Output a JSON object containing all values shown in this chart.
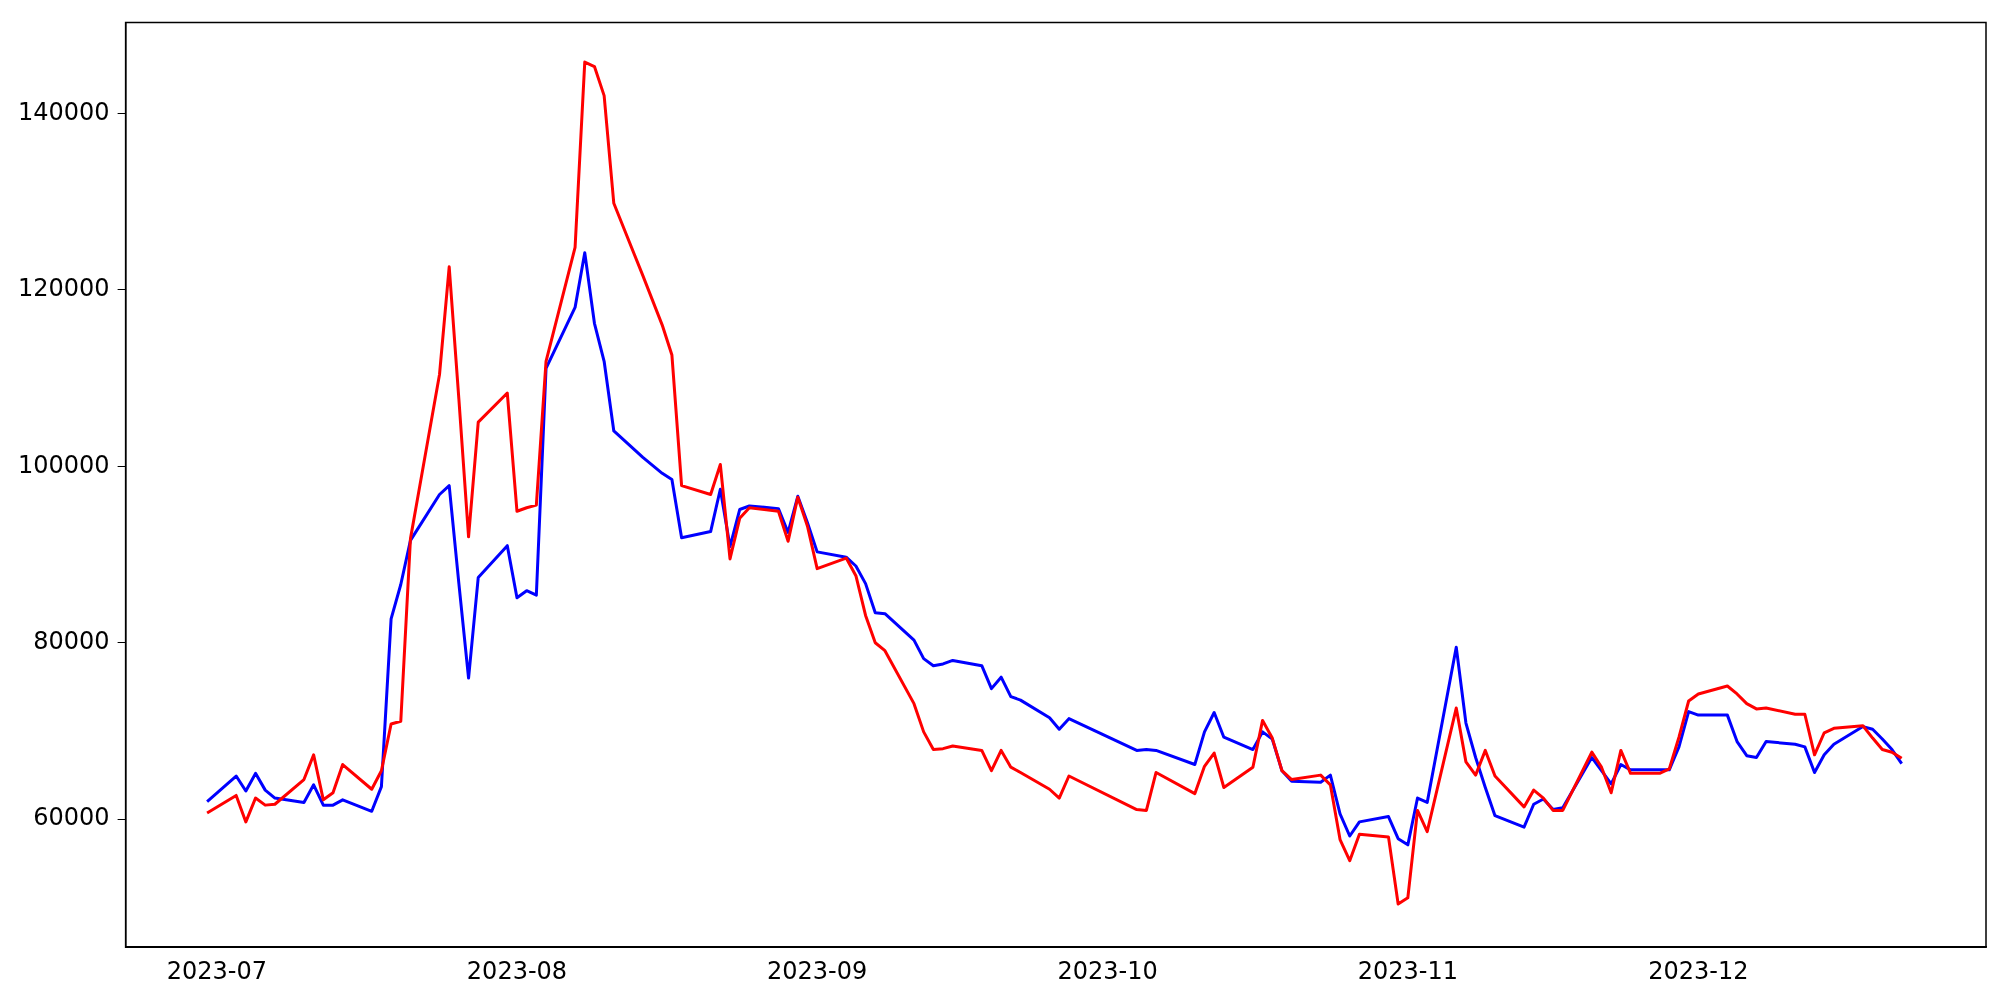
{
  "chart_data": {
    "type": "line",
    "x": [
      "2023-06-30",
      "2023-07-03",
      "2023-07-04",
      "2023-07-05",
      "2023-07-06",
      "2023-07-07",
      "2023-07-10",
      "2023-07-11",
      "2023-07-12",
      "2023-07-13",
      "2023-07-14",
      "2023-07-17",
      "2023-07-18",
      "2023-07-19",
      "2023-07-20",
      "2023-07-21",
      "2023-07-24",
      "2023-07-25",
      "2023-07-26",
      "2023-07-27",
      "2023-07-28",
      "2023-07-31",
      "2023-08-01",
      "2023-08-02",
      "2023-08-03",
      "2023-08-04",
      "2023-08-07",
      "2023-08-08",
      "2023-08-09",
      "2023-08-10",
      "2023-08-11",
      "2023-08-14",
      "2023-08-16",
      "2023-08-17",
      "2023-08-18",
      "2023-08-21",
      "2023-08-22",
      "2023-08-23",
      "2023-08-24",
      "2023-08-25",
      "2023-08-28",
      "2023-08-29",
      "2023-08-30",
      "2023-08-31",
      "2023-09-01",
      "2023-09-04",
      "2023-09-05",
      "2023-09-06",
      "2023-09-07",
      "2023-09-08",
      "2023-09-11",
      "2023-09-12",
      "2023-09-13",
      "2023-09-14",
      "2023-09-15",
      "2023-09-18",
      "2023-09-19",
      "2023-09-20",
      "2023-09-21",
      "2023-09-22",
      "2023-09-25",
      "2023-09-26",
      "2023-09-27",
      "2023-10-04",
      "2023-10-05",
      "2023-10-06",
      "2023-10-10",
      "2023-10-11",
      "2023-10-12",
      "2023-10-13",
      "2023-10-16",
      "2023-10-17",
      "2023-10-18",
      "2023-10-19",
      "2023-10-20",
      "2023-10-23",
      "2023-10-24",
      "2023-10-25",
      "2023-10-26",
      "2023-10-27",
      "2023-10-30",
      "2023-10-31",
      "2023-11-01",
      "2023-11-02",
      "2023-11-03",
      "2023-11-06",
      "2023-11-07",
      "2023-11-08",
      "2023-11-09",
      "2023-11-10",
      "2023-11-13",
      "2023-11-14",
      "2023-11-15",
      "2023-11-16",
      "2023-11-17",
      "2023-11-20",
      "2023-11-21",
      "2023-11-22",
      "2023-11-23",
      "2023-11-24",
      "2023-11-27",
      "2023-11-28",
      "2023-11-29",
      "2023-11-30",
      "2023-12-01",
      "2023-12-04",
      "2023-12-05",
      "2023-12-06",
      "2023-12-07",
      "2023-12-08",
      "2023-12-11",
      "2023-12-12",
      "2023-12-13",
      "2023-12-14",
      "2023-12-15",
      "2023-12-18",
      "2023-12-19",
      "2023-12-20",
      "2023-12-21",
      "2023-12-22"
    ],
    "series": [
      {
        "color": "#ff0000",
        "values": [
          60700,
          62700,
          59700,
          62400,
          61600,
          61700,
          64500,
          67300,
          62200,
          63000,
          66200,
          63400,
          65500,
          70800,
          71100,
          91800,
          110400,
          122600,
          107600,
          92000,
          105000,
          108300,
          94900,
          95300,
          95600,
          111900,
          124800,
          145800,
          145300,
          142000,
          129800,
          121600,
          116000,
          112600,
          97800,
          96800,
          100200,
          89500,
          94100,
          95300,
          94900,
          91500,
          96500,
          93200,
          88400,
          89600,
          87600,
          83100,
          80000,
          79100,
          73100,
          69900,
          67900,
          68000,
          68300,
          67800,
          65500,
          67800,
          65900,
          65300,
          63400,
          62400,
          64900,
          61100,
          61000,
          65300,
          62900,
          66000,
          67500,
          63600,
          65900,
          71200,
          69200,
          65500,
          64500,
          65000,
          63900,
          57700,
          55300,
          58300,
          58000,
          50400,
          51100,
          61000,
          58600,
          72600,
          66500,
          65000,
          67800,
          64900,
          61400,
          63300,
          62400,
          61000,
          61000,
          67600,
          65900,
          63000,
          67800,
          65200,
          65200,
          65700,
          69300,
          73400,
          74200,
          75100,
          74200,
          73100,
          72500,
          72600,
          71900,
          71900,
          67300,
          69800,
          70300,
          70600,
          69200,
          67900,
          67600,
          66900
        ]
      },
      {
        "color": "#0000ff",
        "values": [
          62000,
          64900,
          63200,
          65200,
          63300,
          62400,
          61900,
          63900,
          61600,
          61600,
          62200,
          60900,
          63700,
          82700,
          86600,
          91600,
          96800,
          97800,
          86700,
          76000,
          87400,
          91000,
          85100,
          85900,
          85400,
          111100,
          118000,
          124200,
          116200,
          111900,
          104000,
          101000,
          99200,
          98500,
          91900,
          92600,
          97400,
          90900,
          95100,
          95500,
          95200,
          92500,
          96600,
          93600,
          90300,
          89700,
          88700,
          86700,
          83400,
          83300,
          80300,
          78200,
          77400,
          77600,
          78000,
          77400,
          74800,
          76100,
          73900,
          73500,
          71500,
          70200,
          71400,
          67800,
          67900,
          67800,
          66200,
          69900,
          72100,
          69300,
          67900,
          69900,
          69100,
          65500,
          64300,
          64200,
          65000,
          60600,
          58100,
          59700,
          60300,
          57800,
          57100,
          62400,
          61900,
          79500,
          70900,
          67000,
          63600,
          60400,
          59100,
          61700,
          62300,
          61100,
          61300,
          67000,
          65500,
          64000,
          66200,
          65600,
          65600,
          65600,
          68200,
          72200,
          71800,
          71800,
          68800,
          67200,
          67000,
          68800,
          68500,
          68200,
          65300,
          67300,
          68500,
          70500,
          70200,
          69100,
          67900,
          66300
        ]
      }
    ],
    "xlim": [
      "2023-06-21T14:00",
      "2023-12-30T17:00"
    ],
    "xticks": [
      {
        "value": "2023-07-01",
        "label": "2023-07"
      },
      {
        "value": "2023-08-01",
        "label": "2023-08"
      },
      {
        "value": "2023-09-01",
        "label": "2023-09"
      },
      {
        "value": "2023-10-01",
        "label": "2023-10"
      },
      {
        "value": "2023-11-01",
        "label": "2023-11"
      },
      {
        "value": "2023-12-01",
        "label": "2023-12"
      }
    ],
    "ylim": [
      45500,
      150300
    ],
    "yticks": [
      60000,
      80000,
      100000,
      120000,
      140000
    ],
    "grid": false,
    "legend": false
  }
}
